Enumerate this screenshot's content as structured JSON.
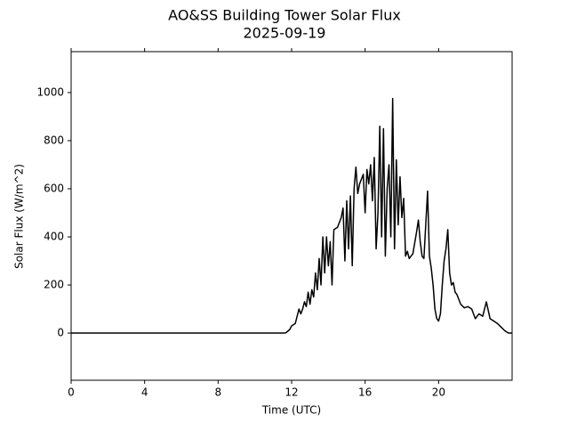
{
  "chart_data": {
    "type": "line",
    "title": "AO&SS Building Tower Solar Flux",
    "subtitle": "2025-09-19",
    "xlabel": "Time (UTC)",
    "ylabel": "Solar Flux (W/m^2)",
    "xlim": [
      0,
      24
    ],
    "ylim": [
      -196,
      1170
    ],
    "xticks": [
      0,
      4,
      8,
      12,
      16,
      20
    ],
    "yticks": [
      0,
      200,
      400,
      600,
      800,
      1000
    ],
    "series": [
      {
        "color": "#000000",
        "x": [
          0,
          11.6,
          11.7,
          11.9,
          12.0,
          12.2,
          12.3,
          12.4,
          12.5,
          12.6,
          12.7,
          12.8,
          12.9,
          13.0,
          13.1,
          13.2,
          13.3,
          13.4,
          13.5,
          13.6,
          13.7,
          13.8,
          13.9,
          14.0,
          14.1,
          14.2,
          14.3,
          14.5,
          14.7,
          14.8,
          14.9,
          15.0,
          15.1,
          15.2,
          15.3,
          15.4,
          15.5,
          15.6,
          15.7,
          15.8,
          15.9,
          16.0,
          16.1,
          16.2,
          16.3,
          16.4,
          16.5,
          16.6,
          16.7,
          16.8,
          16.9,
          17.0,
          17.1,
          17.2,
          17.3,
          17.4,
          17.5,
          17.6,
          17.7,
          17.8,
          17.9,
          18.0,
          18.1,
          18.2,
          18.3,
          18.4,
          18.6,
          18.8,
          18.9,
          19.0,
          19.1,
          19.2,
          19.3,
          19.4,
          19.5,
          19.6,
          19.7,
          19.8,
          19.9,
          20.0,
          20.1,
          20.2,
          20.3,
          20.4,
          20.5,
          20.6,
          20.7,
          20.8,
          20.9,
          21.0,
          21.2,
          21.4,
          21.6,
          21.8,
          22.0,
          22.2,
          22.4,
          22.6,
          22.8,
          23.0,
          23.2,
          23.4,
          23.6,
          23.8,
          24.0
        ],
        "values": [
          0,
          0,
          2,
          15,
          30,
          40,
          70,
          100,
          80,
          100,
          130,
          110,
          170,
          120,
          180,
          150,
          250,
          180,
          310,
          200,
          400,
          250,
          400,
          280,
          380,
          200,
          430,
          440,
          480,
          520,
          300,
          550,
          350,
          570,
          280,
          600,
          690,
          580,
          620,
          640,
          660,
          500,
          680,
          620,
          700,
          550,
          730,
          350,
          500,
          860,
          400,
          850,
          320,
          600,
          700,
          400,
          975,
          350,
          720,
          450,
          650,
          480,
          560,
          320,
          340,
          310,
          330,
          420,
          470,
          380,
          320,
          310,
          450,
          590,
          320,
          270,
          200,
          100,
          60,
          50,
          80,
          200,
          300,
          350,
          430,
          250,
          200,
          210,
          170,
          160,
          120,
          105,
          110,
          100,
          60,
          80,
          70,
          130,
          60,
          50,
          40,
          25,
          10,
          0,
          0
        ]
      }
    ]
  }
}
